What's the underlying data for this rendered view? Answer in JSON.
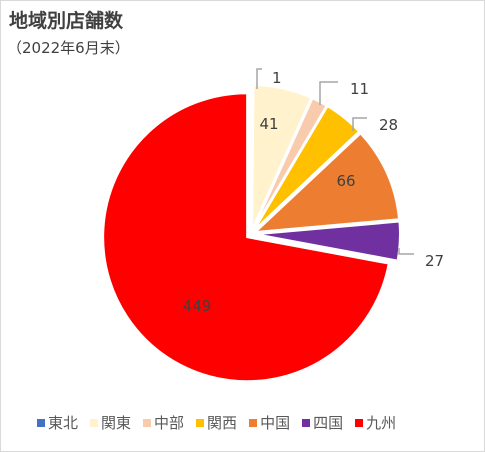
{
  "title": "地域別店舗数",
  "subtitle": "（2022年6月末）",
  "chart_data": {
    "type": "pie",
    "title": "地域別店舗数",
    "subtitle": "（2022年6月末）",
    "categories": [
      "東北",
      "関東",
      "中部",
      "関西",
      "中国",
      "四国",
      "九州"
    ],
    "values": [
      1,
      41,
      11,
      28,
      66,
      27,
      449
    ],
    "colors": [
      "#4472c4",
      "#fff2cc",
      "#f8cbad",
      "#ffc000",
      "#ed7d31",
      "#7030a0",
      "#ff0000"
    ],
    "data_labels": [
      "1",
      "41",
      "11",
      "28",
      "66",
      "27",
      "449"
    ],
    "legend_position": "bottom",
    "start_angle": "12 o'clock, clockwise"
  }
}
